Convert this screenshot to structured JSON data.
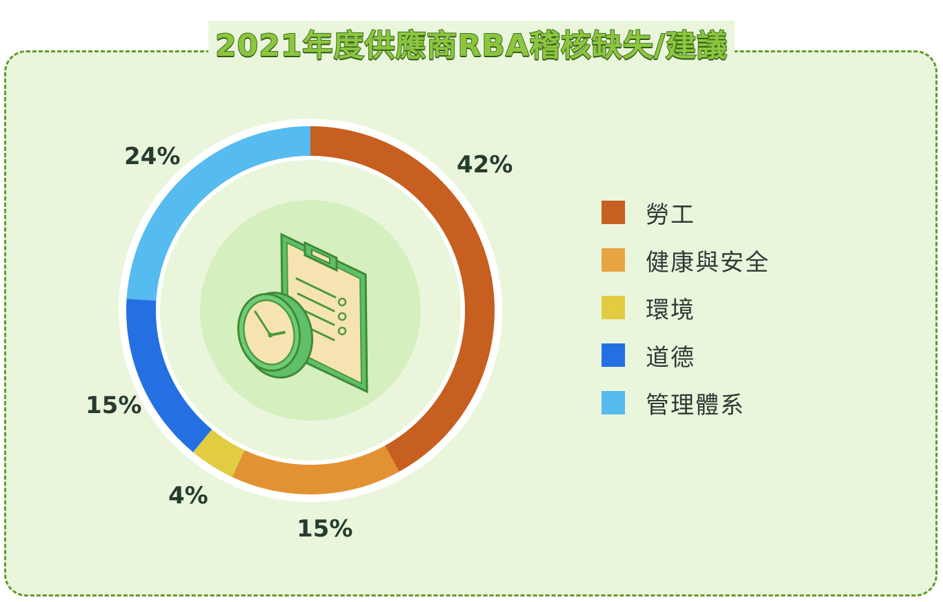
{
  "chart_data": {
    "type": "pie",
    "variant": "donut",
    "title": "2021年度供應商RBA稽核缺失/建議",
    "categories": [
      "勞工",
      "健康與安全",
      "環境",
      "道德",
      "管理體系"
    ],
    "values": [
      42,
      15,
      4,
      15,
      24
    ],
    "value_labels": [
      "42%",
      "15%",
      "4%",
      "15%",
      "24%"
    ],
    "colors": [
      "#c65f20",
      "#e39233",
      "#e1cc42",
      "#2470e2",
      "#56bbee"
    ],
    "legend_position": "right"
  },
  "center_icon": "clipboard-clock-icon"
}
